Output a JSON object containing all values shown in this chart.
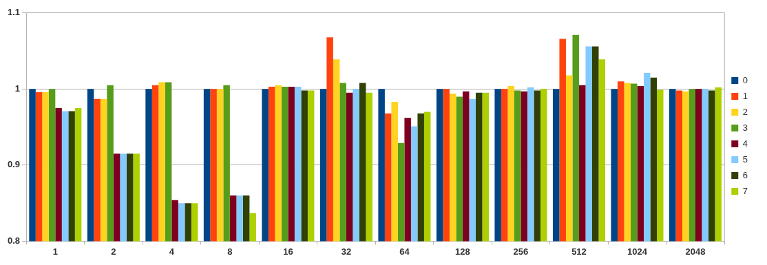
{
  "chart_data": {
    "type": "bar",
    "categories": [
      "1",
      "2",
      "4",
      "8",
      "16",
      "32",
      "64",
      "128",
      "256",
      "512",
      "1024",
      "2048"
    ],
    "series": [
      {
        "name": "0",
        "color": "#004586",
        "values": [
          1,
          1,
          1,
          1,
          1,
          1,
          1,
          1,
          1,
          1,
          1,
          1
        ]
      },
      {
        "name": "1",
        "color": "#ff420e",
        "values": [
          0.996,
          0.987,
          1.005,
          1,
          1.003,
          1.068,
          0.968,
          1,
          1,
          1.066,
          1.01,
          0.998
        ]
      },
      {
        "name": "2",
        "color": "#ffd320",
        "values": [
          0.996,
          0.987,
          1.009,
          1,
          1.005,
          1.039,
          0.983,
          0.994,
          1.004,
          1.018,
          1.008,
          0.997
        ]
      },
      {
        "name": "3",
        "color": "#579d1c",
        "values": [
          1,
          1.005,
          1.009,
          1.005,
          1.003,
          1.008,
          0.929,
          0.99,
          0.998,
          1.071,
          1.007,
          1
        ]
      },
      {
        "name": "4",
        "color": "#7e0021",
        "values": [
          0.975,
          0.915,
          0.854,
          0.86,
          1.003,
          0.995,
          0.962,
          0.997,
          0.997,
          1.005,
          1.004,
          1
        ]
      },
      {
        "name": "5",
        "color": "#83caff",
        "values": [
          0.971,
          0.915,
          0.85,
          0.86,
          1.003,
          1,
          0.951,
          0.987,
          1.002,
          1.056,
          1.021,
          1
        ]
      },
      {
        "name": "6",
        "color": "#314004",
        "values": [
          0.971,
          0.915,
          0.85,
          0.86,
          0.998,
          1.008,
          0.968,
          0.995,
          0.998,
          1.056,
          1.015,
          0.998
        ]
      },
      {
        "name": "7",
        "color": "#aecf00",
        "values": [
          0.975,
          0.915,
          0.85,
          0.837,
          0.998,
          0.995,
          0.97,
          0.995,
          1,
          1.039,
          0.999,
          1.002
        ]
      }
    ],
    "ylim": [
      0.8,
      1.1
    ],
    "yticks": [
      0.8,
      0.9,
      1,
      1.1
    ],
    "grid": "y",
    "legend": "right"
  }
}
